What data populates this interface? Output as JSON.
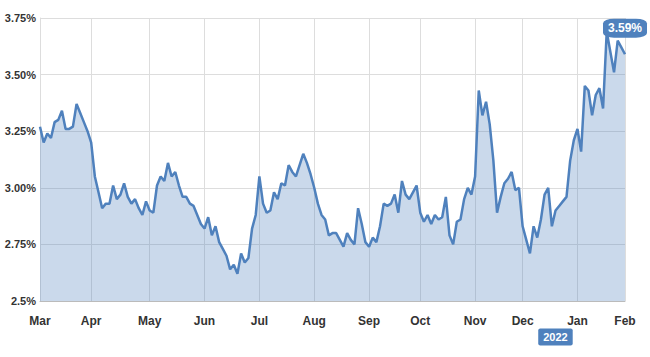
{
  "chart_data": {
    "type": "area",
    "color": "#4f81bd",
    "grid": true,
    "x": [
      "Mar",
      null,
      null,
      null,
      null,
      null,
      null,
      null,
      null,
      null,
      null,
      null,
      null,
      null,
      "Apr",
      null,
      null,
      null,
      null,
      null,
      null,
      null,
      null,
      null,
      null,
      null,
      null,
      null,
      null,
      null,
      "May",
      null,
      null,
      null,
      null,
      null,
      null,
      null,
      null,
      null,
      null,
      null,
      null,
      null,
      null,
      "Jun",
      null,
      null,
      null,
      null,
      null,
      null,
      null,
      null,
      null,
      null,
      null,
      null,
      null,
      null,
      "Jul",
      null,
      null,
      null,
      null,
      null,
      null,
      null,
      null,
      null,
      null,
      null,
      null,
      null,
      null,
      "Aug",
      null,
      null,
      null,
      null,
      null,
      null,
      null,
      null,
      null,
      null,
      null,
      null,
      null,
      null,
      "Sep",
      null,
      null,
      null,
      null,
      null,
      null,
      null,
      null,
      null,
      null,
      null,
      null,
      null,
      "Oct",
      null,
      null,
      null,
      null,
      null,
      null,
      null,
      null,
      null,
      null,
      null,
      null,
      null,
      null,
      "Nov",
      null,
      null,
      null,
      null,
      null,
      null,
      null,
      null,
      null,
      null,
      null,
      null,
      "Dec",
      null,
      null,
      null,
      null,
      null,
      null,
      null,
      null,
      null,
      null,
      null,
      null,
      null,
      null,
      "Jan",
      null,
      null,
      null,
      null,
      null,
      null,
      null,
      null,
      null,
      null,
      null,
      null,
      "Feb"
    ],
    "values": [
      3.27,
      3.2,
      3.24,
      3.22,
      3.29,
      3.3,
      3.34,
      3.26,
      3.26,
      3.27,
      3.37,
      3.33,
      3.29,
      3.25,
      3.2,
      3.05,
      2.98,
      2.91,
      2.93,
      2.93,
      3.01,
      2.95,
      2.97,
      3.02,
      2.96,
      2.93,
      2.95,
      2.91,
      2.88,
      2.94,
      2.9,
      2.89,
      3.01,
      3.05,
      3.03,
      3.11,
      3.05,
      3.07,
      3.01,
      2.96,
      2.96,
      2.93,
      2.92,
      2.88,
      2.84,
      2.82,
      2.87,
      2.79,
      2.83,
      2.76,
      2.73,
      2.7,
      2.64,
      2.66,
      2.62,
      2.71,
      2.67,
      2.69,
      2.82,
      2.88,
      3.05,
      2.93,
      2.89,
      2.9,
      2.98,
      2.95,
      3.02,
      3.01,
      3.1,
      3.07,
      3.05,
      3.1,
      3.15,
      3.11,
      3.06,
      3.0,
      2.93,
      2.88,
      2.86,
      2.79,
      2.8,
      2.8,
      2.77,
      2.74,
      2.8,
      2.77,
      2.75,
      2.91,
      2.84,
      2.76,
      2.74,
      2.78,
      2.76,
      2.83,
      2.93,
      2.92,
      2.93,
      2.97,
      2.89,
      3.03,
      2.97,
      2.95,
      2.98,
      3.01,
      2.89,
      2.85,
      2.88,
      2.84,
      2.88,
      2.86,
      2.87,
      2.96,
      2.79,
      2.75,
      2.85,
      2.86,
      2.95,
      3.0,
      2.97,
      3.05,
      3.43,
      3.32,
      3.38,
      3.28,
      3.12,
      2.89,
      2.96,
      3.02,
      3.04,
      3.07,
      2.99,
      3.0,
      2.83,
      2.77,
      2.71,
      2.83,
      2.78,
      2.86,
      2.97,
      3.0,
      2.83,
      2.9,
      2.92,
      2.94,
      2.96,
      3.12,
      3.21,
      3.26,
      3.16,
      3.45,
      3.43,
      3.32,
      3.41,
      3.44,
      3.35,
      3.69,
      3.6,
      3.51,
      3.65,
      3.62,
      3.59
    ],
    "ylim": [
      2.5,
      3.75
    ],
    "yticks": [
      {
        "value": 2.5,
        "label": "2.5%"
      },
      {
        "value": 2.75,
        "label": "2.75%"
      },
      {
        "value": 3.0,
        "label": "3.00%"
      },
      {
        "value": 3.25,
        "label": "3.25%"
      },
      {
        "value": 3.5,
        "label": "3.50%"
      },
      {
        "value": 3.75,
        "label": "3.75%"
      }
    ],
    "annotations": [
      {
        "label": "3.59%",
        "value": 3.59
      },
      {
        "label": "2022",
        "x": "Jan"
      }
    ]
  }
}
